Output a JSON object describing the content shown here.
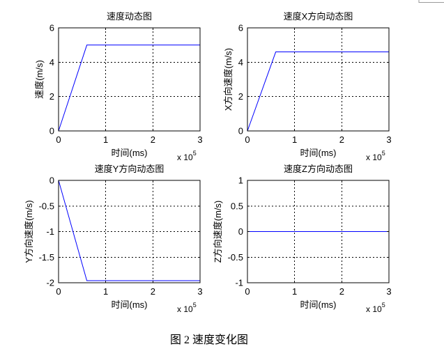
{
  "figure": {
    "caption": "图 2 速度变化图",
    "line_color": "#0000ff",
    "axis_color": "#000000",
    "background": "#ffffff"
  },
  "chart_data": [
    {
      "type": "line",
      "title": "速度动态图",
      "xlabel": "时间(ms)",
      "ylabel": "速度(m/s)",
      "x_scale_label": "x 10",
      "x_scale_exponent": "5",
      "xlim": [
        0,
        3
      ],
      "ylim": [
        0,
        6
      ],
      "xticks": [
        0,
        1,
        2,
        3
      ],
      "yticks": [
        0,
        2,
        4,
        6
      ],
      "grid": true,
      "series": [
        {
          "x": [
            0,
            0.6,
            3
          ],
          "y": [
            0,
            5,
            5
          ],
          "color": "#0000ff"
        }
      ]
    },
    {
      "type": "line",
      "title": "速度X方向动态图",
      "xlabel": "时间(ms)",
      "ylabel": "X方向速度(m/s)",
      "x_scale_label": "x 10",
      "x_scale_exponent": "5",
      "xlim": [
        0,
        3
      ],
      "ylim": [
        0,
        6
      ],
      "xticks": [
        0,
        1,
        2,
        3
      ],
      "yticks": [
        0,
        2,
        4,
        6
      ],
      "grid": true,
      "series": [
        {
          "x": [
            0,
            0.6,
            3
          ],
          "y": [
            0,
            4.6,
            4.6
          ],
          "color": "#0000ff"
        }
      ]
    },
    {
      "type": "line",
      "title": "速度Y方向动态图",
      "xlabel": "时间(ms)",
      "ylabel": "Y方向速度(m/s)",
      "x_scale_label": "x 10",
      "x_scale_exponent": "5",
      "xlim": [
        0,
        3
      ],
      "ylim": [
        -2,
        0
      ],
      "xticks": [
        0,
        1,
        2,
        3
      ],
      "yticks": [
        -2,
        -1.5,
        -1,
        -0.5,
        0
      ],
      "grid": true,
      "series": [
        {
          "x": [
            0,
            0.6,
            3
          ],
          "y": [
            0,
            -1.96,
            -1.96
          ],
          "color": "#0000ff"
        }
      ]
    },
    {
      "type": "line",
      "title": "速度Z方向动态图",
      "xlabel": "时间(ms)",
      "ylabel": "Z方向速度(m/s)",
      "x_scale_label": "x 10",
      "x_scale_exponent": "5",
      "xlim": [
        0,
        3
      ],
      "ylim": [
        -1,
        1
      ],
      "xticks": [
        0,
        1,
        2,
        3
      ],
      "yticks": [
        -1,
        -0.5,
        0,
        0.5,
        1
      ],
      "grid": true,
      "series": [
        {
          "x": [
            0,
            0.6,
            3
          ],
          "y": [
            0,
            0,
            0
          ],
          "color": "#0000ff"
        }
      ]
    }
  ]
}
